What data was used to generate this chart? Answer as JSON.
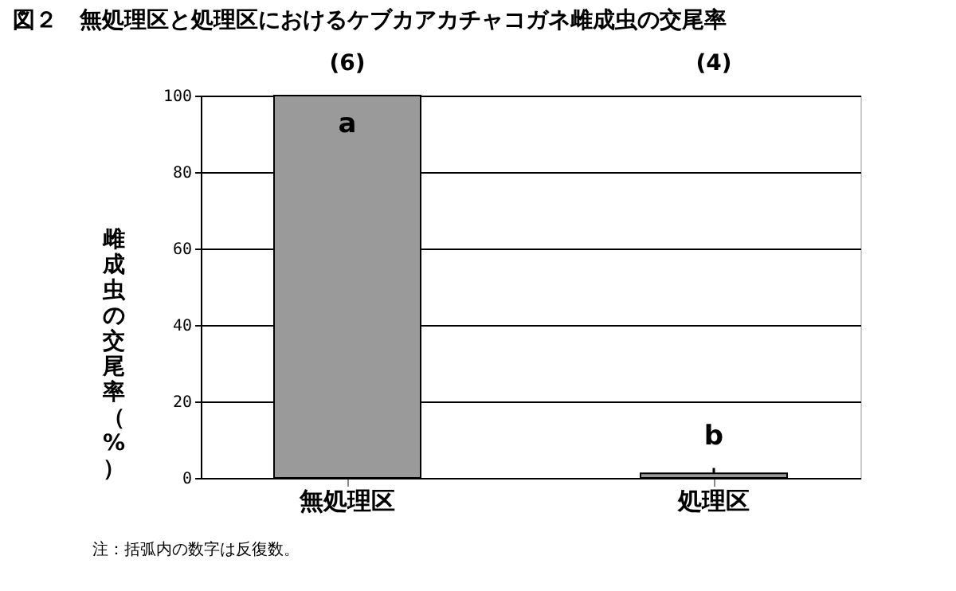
{
  "chart_data": {
    "type": "bar",
    "title": "図２　無処理区と処理区におけるケブカアカチャコガネ雌成虫の交尾率",
    "ylabel": "雌成虫の交尾率（%）",
    "categories": [
      "無処理区",
      "処理区"
    ],
    "series": [
      {
        "color": "#9a9a9a",
        "values": [
          100,
          1.2
        ],
        "errors": [
          null,
          [
            1.2,
            2.6
          ]
        ]
      }
    ],
    "ylim": [
      0,
      100
    ],
    "yticks": [
      0,
      20,
      40,
      60,
      80,
      100
    ],
    "grid": "y",
    "annotations": [
      "(6)",
      "(4)",
      "a",
      "b",
      "注：括弧内の数字は反復数。"
    ]
  }
}
